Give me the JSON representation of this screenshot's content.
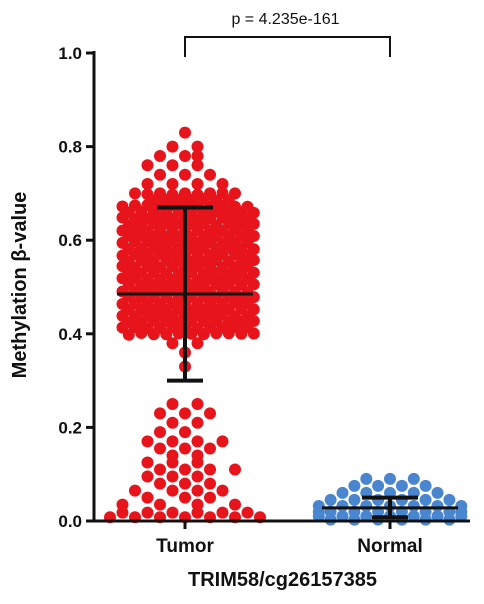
{
  "chart_data": {
    "type": "scatter",
    "subtype": "dot-plot with mean and SD bars",
    "title": "",
    "xlabel": "TRIM58/cg26157385",
    "ylabel": "Methylation β-value",
    "categories": [
      "Tumor",
      "Normal"
    ],
    "ylim": [
      0.0,
      1.0
    ],
    "yticks": [
      0.0,
      0.2,
      0.4,
      0.6,
      0.8,
      1.0
    ],
    "ytick_labels": [
      "0.0",
      "0.2",
      "0.4",
      "0.6",
      "0.8",
      "1.0"
    ],
    "annotation": "p = 4.235e-161",
    "series": [
      {
        "category": "Tumor",
        "color": "#e8141c",
        "mean": 0.485,
        "sd_upper": 0.67,
        "sd_lower": 0.3,
        "point_summary": {
          "dense_band": [
            0.4,
            0.7
          ],
          "max": 0.83,
          "sparse_range": [
            0.0,
            0.25
          ]
        }
      },
      {
        "category": "Normal",
        "color": "#4a86cf",
        "mean": 0.028,
        "sd_upper": 0.05,
        "sd_lower": 0.008,
        "point_summary": {
          "dense_band": [
            0.0,
            0.05
          ],
          "max": 0.09
        }
      }
    ]
  }
}
